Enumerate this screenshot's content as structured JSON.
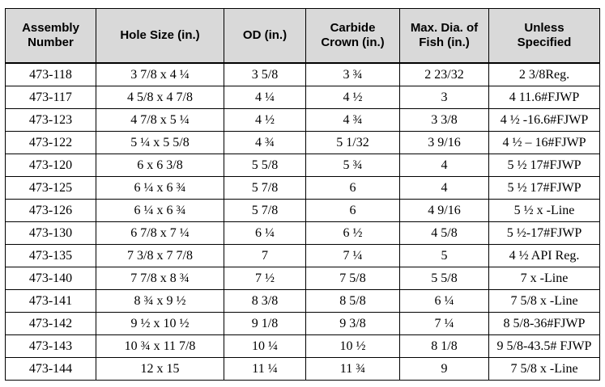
{
  "headers": [
    {
      "line1": "Assembly",
      "line2": "Number"
    },
    {
      "line1": "Hole Size (in.)",
      "line2": ""
    },
    {
      "line1": "OD (in.)",
      "line2": ""
    },
    {
      "line1": "Carbide",
      "line2": "Crown (in.)"
    },
    {
      "line1": "Max. Dia. of",
      "line2": "Fish (in.)"
    },
    {
      "line1": "Unless",
      "line2": "Specified"
    }
  ],
  "rows": [
    [
      "473-118",
      "3 7/8 x 4 ¼",
      "3 5/8",
      "3 ¾",
      "2 23/32",
      "2 3/8Reg."
    ],
    [
      "473-117",
      "4 5/8 x 4 7/8",
      "4 ¼",
      "4 ½",
      "3",
      "4 11.6#FJWP"
    ],
    [
      "473-123",
      "4 7/8 x 5 ¼",
      "4 ½",
      "4 ¾",
      "3 3/8",
      "4 ½ -16.6#FJWP"
    ],
    [
      "473-122",
      "5 ¼ x 5 5/8",
      "4 ¾",
      "5 1/32",
      "3 9/16",
      "4 ½ – 16#FJWP"
    ],
    [
      "473-120",
      "6 x 6 3/8",
      "5 5/8",
      "5 ¾",
      "4",
      "5 ½ 17#FJWP"
    ],
    [
      "473-125",
      "6 ¼ x 6 ¾",
      "5 7/8",
      "6",
      "4",
      "5 ½ 17#FJWP"
    ],
    [
      "473-126",
      "6 ¼ x 6 ¾",
      "5 7/8",
      "6",
      "4 9/16",
      "5 ½ x -Line"
    ],
    [
      "473-130",
      "6 7/8 x 7 ¼",
      "6 ¼",
      "6 ½",
      "4 5/8",
      "5 ½-17#FJWP"
    ],
    [
      "473-135",
      "7 3/8 x 7 7/8",
      "7",
      "7 ¼",
      "5",
      "4 ½ API Reg."
    ],
    [
      "473-140",
      "7 7/8 x 8 ¾",
      "7 ½",
      "7 5/8",
      "5 5/8",
      "7 x -Line"
    ],
    [
      "473-141",
      "8 ¾ x 9 ½",
      "8 3/8",
      "8 5/8",
      "6 ¼",
      "7 5/8 x -Line"
    ],
    [
      "473-142",
      "9 ½ x 10 ½",
      "9 1/8",
      "9 3/8",
      "7 ¼",
      "8 5/8-36#FJWP"
    ],
    [
      "473-143",
      "10 ¾ x 11 7/8",
      "10 ¼",
      "10 ½",
      "8 1/8",
      "9 5/8-43.5# FJWP"
    ],
    [
      "473-144",
      "12 x 15",
      "11 ¼",
      "11 ¾",
      "9",
      "7 5/8 x -Line"
    ]
  ]
}
